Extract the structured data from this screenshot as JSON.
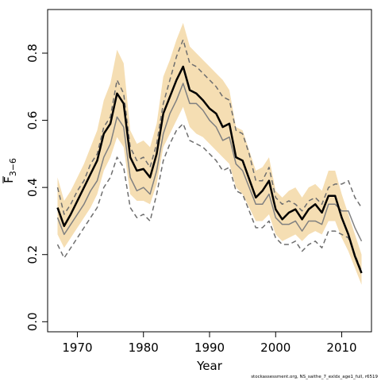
{
  "chart_data": {
    "type": "line",
    "xlabel": "Year",
    "ylabel_main": "F",
    "ylabel_sub": "3−6",
    "xlim": [
      1965.5,
      2014.5
    ],
    "ylim": [
      -0.03,
      0.93
    ],
    "xticks": [
      1970,
      1980,
      1990,
      2000,
      2010
    ],
    "xtick_labels": [
      "1970",
      "1980",
      "1990",
      "2000",
      "2010"
    ],
    "yticks": [
      0.0,
      0.2,
      0.4,
      0.6,
      0.8
    ],
    "ytick_labels": [
      "0.0",
      "0.2",
      "0.4",
      "0.6",
      "0.8"
    ],
    "grid": false,
    "credit": "stockassessment.org, NS_saithe_7_exldx_age1_full, r6519",
    "colors": {
      "band": "#f5deb3",
      "main": "#000000",
      "secondary": "#808080",
      "dashed": "#6e6e6e"
    },
    "years": [
      1967,
      1968,
      1969,
      1970,
      1971,
      1972,
      1973,
      1974,
      1975,
      1976,
      1977,
      1978,
      1979,
      1980,
      1981,
      1982,
      1983,
      1984,
      1985,
      1986,
      1987,
      1988,
      1989,
      1990,
      1991,
      1992,
      1993,
      1994,
      1995,
      1996,
      1997,
      1998,
      1999,
      2000,
      2001,
      2002,
      2003,
      2004,
      2005,
      2006,
      2007,
      2008,
      2009,
      2010,
      2011,
      2012,
      2013
    ],
    "series": [
      {
        "role": "upper_band",
        "values": [
          0.43,
          0.36,
          0.39,
          0.43,
          0.47,
          0.52,
          0.57,
          0.66,
          0.71,
          0.81,
          0.77,
          0.57,
          0.53,
          0.54,
          0.52,
          0.59,
          0.73,
          0.78,
          0.84,
          0.89,
          0.82,
          0.8,
          0.78,
          0.76,
          0.74,
          0.72,
          0.69,
          0.58,
          0.57,
          0.51,
          0.45,
          0.46,
          0.49,
          0.39,
          0.37,
          0.39,
          0.4,
          0.37,
          0.4,
          0.41,
          0.39,
          0.45,
          0.45,
          0.38,
          0.32,
          0.26,
          0.2
        ]
      },
      {
        "role": "lower_band",
        "values": [
          0.26,
          0.22,
          0.25,
          0.28,
          0.31,
          0.34,
          0.38,
          0.45,
          0.49,
          0.55,
          0.52,
          0.38,
          0.36,
          0.36,
          0.35,
          0.41,
          0.52,
          0.56,
          0.6,
          0.64,
          0.58,
          0.56,
          0.55,
          0.53,
          0.51,
          0.49,
          0.47,
          0.4,
          0.38,
          0.34,
          0.3,
          0.3,
          0.32,
          0.26,
          0.24,
          0.25,
          0.26,
          0.24,
          0.26,
          0.27,
          0.26,
          0.3,
          0.3,
          0.25,
          0.21,
          0.16,
          0.11
        ]
      },
      {
        "role": "main",
        "values": [
          0.34,
          0.285,
          0.32,
          0.36,
          0.4,
          0.44,
          0.48,
          0.56,
          0.59,
          0.68,
          0.65,
          0.49,
          0.45,
          0.455,
          0.43,
          0.5,
          0.62,
          0.67,
          0.72,
          0.76,
          0.69,
          0.68,
          0.66,
          0.635,
          0.62,
          0.58,
          0.59,
          0.49,
          0.48,
          0.425,
          0.37,
          0.39,
          0.42,
          0.335,
          0.305,
          0.325,
          0.335,
          0.305,
          0.335,
          0.35,
          0.325,
          0.375,
          0.375,
          0.31,
          0.26,
          0.195,
          0.145
        ]
      },
      {
        "role": "secondary",
        "values": [
          0.31,
          0.26,
          0.29,
          0.32,
          0.35,
          0.39,
          0.42,
          0.49,
          0.53,
          0.61,
          0.58,
          0.43,
          0.39,
          0.4,
          0.38,
          0.45,
          0.56,
          0.62,
          0.66,
          0.71,
          0.65,
          0.65,
          0.63,
          0.6,
          0.58,
          0.54,
          0.55,
          0.47,
          0.45,
          0.4,
          0.35,
          0.35,
          0.38,
          0.31,
          0.29,
          0.29,
          0.3,
          0.27,
          0.3,
          0.3,
          0.29,
          0.35,
          0.35,
          0.33,
          0.33,
          0.28,
          0.24
        ]
      },
      {
        "role": "dashed_upper",
        "values": [
          0.4,
          0.32,
          0.35,
          0.39,
          0.42,
          0.47,
          0.5,
          0.58,
          0.61,
          0.72,
          0.68,
          0.52,
          0.48,
          0.49,
          0.46,
          0.53,
          0.65,
          0.72,
          0.79,
          0.84,
          0.77,
          0.76,
          0.74,
          0.72,
          0.7,
          0.67,
          0.66,
          0.57,
          0.56,
          0.5,
          0.42,
          0.42,
          0.46,
          0.37,
          0.35,
          0.36,
          0.35,
          0.33,
          0.36,
          0.37,
          0.35,
          0.4,
          0.41,
          0.41,
          0.42,
          0.37,
          0.34
        ]
      },
      {
        "role": "dashed_lower",
        "values": [
          0.23,
          0.19,
          0.22,
          0.25,
          0.28,
          0.31,
          0.34,
          0.4,
          0.43,
          0.49,
          0.46,
          0.34,
          0.31,
          0.32,
          0.3,
          0.38,
          0.48,
          0.53,
          0.57,
          0.59,
          0.54,
          0.53,
          0.52,
          0.5,
          0.48,
          0.45,
          0.46,
          0.39,
          0.38,
          0.33,
          0.28,
          0.28,
          0.3,
          0.25,
          0.23,
          0.23,
          0.24,
          0.21,
          0.23,
          0.24,
          0.22,
          0.27,
          0.27,
          0.26,
          0.25,
          0.2,
          0.15
        ]
      }
    ]
  }
}
